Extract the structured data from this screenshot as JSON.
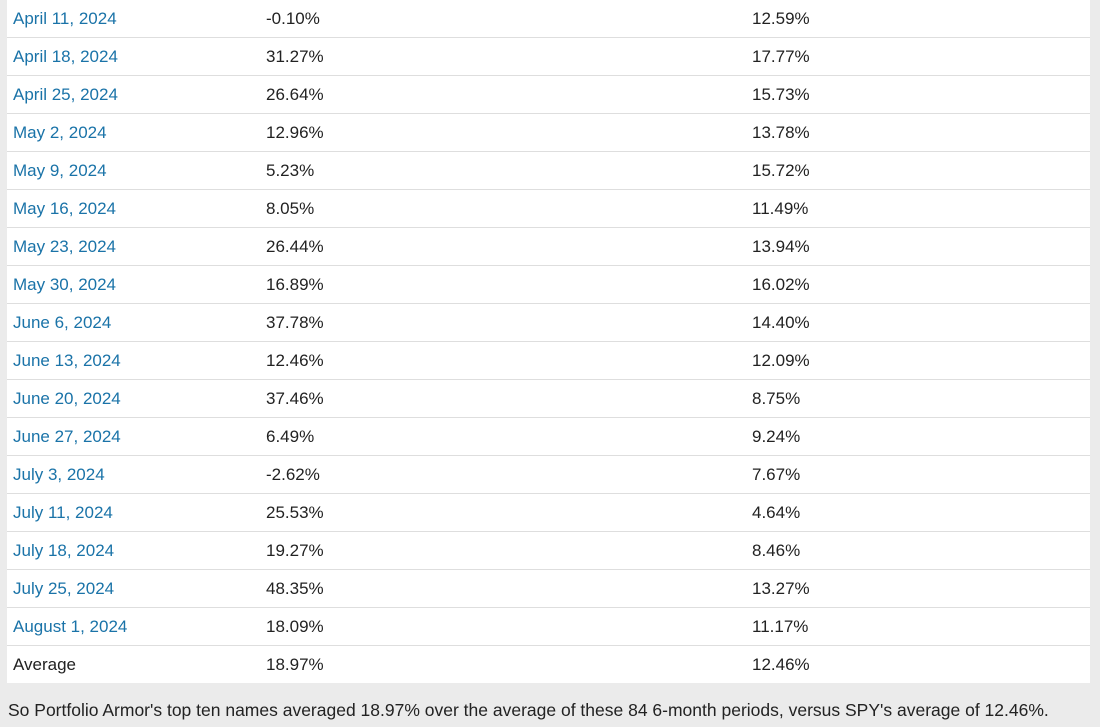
{
  "table": {
    "rows": [
      {
        "date": "April 11, 2024",
        "top_ten": "-0.10%",
        "spy": "12.59%"
      },
      {
        "date": "April 18, 2024",
        "top_ten": "31.27%",
        "spy": "17.77%"
      },
      {
        "date": "April 25, 2024",
        "top_ten": "26.64%",
        "spy": "15.73%"
      },
      {
        "date": "May 2, 2024",
        "top_ten": "12.96%",
        "spy": "13.78%"
      },
      {
        "date": "May 9, 2024",
        "top_ten": "5.23%",
        "spy": "15.72%"
      },
      {
        "date": "May 16, 2024",
        "top_ten": "8.05%",
        "spy": "11.49%"
      },
      {
        "date": "May 23, 2024",
        "top_ten": "26.44%",
        "spy": "13.94%"
      },
      {
        "date": "May 30, 2024",
        "top_ten": "16.89%",
        "spy": "16.02%"
      },
      {
        "date": "June 6, 2024",
        "top_ten": "37.78%",
        "spy": "14.40%"
      },
      {
        "date": "June 13, 2024",
        "top_ten": "12.46%",
        "spy": "12.09%"
      },
      {
        "date": "June 20, 2024",
        "top_ten": "37.46%",
        "spy": "8.75%"
      },
      {
        "date": "June 27, 2024",
        "top_ten": "6.49%",
        "spy": "9.24%"
      },
      {
        "date": "July 3, 2024",
        "top_ten": "-2.62%",
        "spy": "7.67%"
      },
      {
        "date": "July 11, 2024",
        "top_ten": "25.53%",
        "spy": "4.64%"
      },
      {
        "date": "July 18, 2024",
        "top_ten": "19.27%",
        "spy": "8.46%"
      },
      {
        "date": "July 25, 2024",
        "top_ten": "48.35%",
        "spy": "13.27%"
      },
      {
        "date": "August 1, 2024",
        "top_ten": "18.09%",
        "spy": "11.17%"
      }
    ],
    "average": {
      "label": "Average",
      "top_ten": "18.97%",
      "spy": "12.46%"
    }
  },
  "caption": "So Portfolio Armor's top ten names averaged 18.97% over the average of these 84 6-month periods, versus SPY's average of 12.46%.",
  "colors": {
    "link": "#1a73a8",
    "background": "#ebebeb",
    "table_background": "#ffffff"
  }
}
